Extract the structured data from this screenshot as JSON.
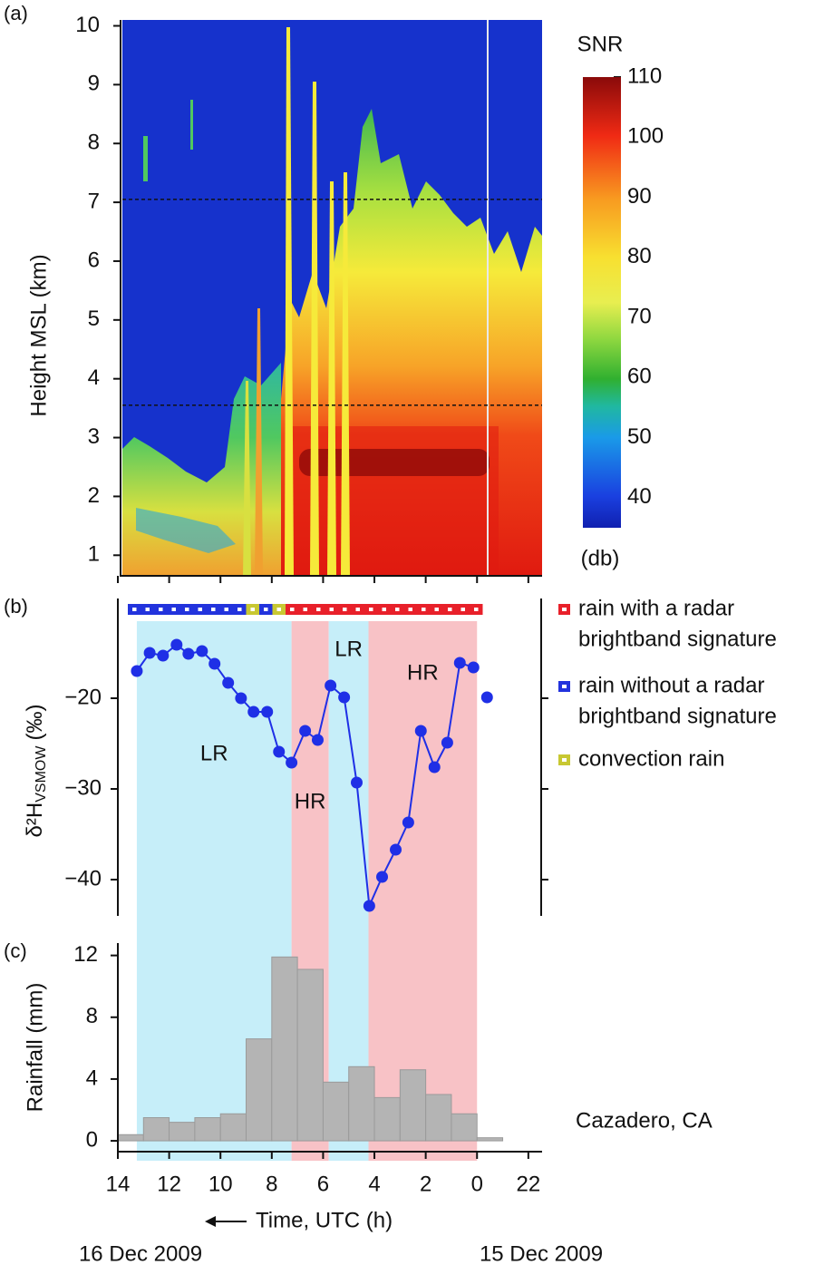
{
  "chart_data": [
    {
      "type": "heatmap",
      "label": "(a)",
      "ylabel": "Height MSL (km)",
      "ylim": [
        0.65,
        10.1
      ],
      "yticks": [
        1,
        2,
        3,
        4,
        5,
        6,
        7,
        8,
        9,
        10
      ],
      "hlines": [
        7.05,
        3.55
      ],
      "colorbar": {
        "title": "SNR",
        "unit": "(db)",
        "lim": [
          35,
          110
        ],
        "ticks": [
          40,
          50,
          60,
          70,
          80,
          90,
          100,
          110
        ]
      }
    },
    {
      "type": "line",
      "label": "(b)",
      "ylabel": "δ²H",
      "ylabel_sub": "VSMOW",
      "ylabel_unit": "(‰)",
      "xlim": [
        14,
        -2.5
      ],
      "ylim": [
        -44,
        -9
      ],
      "yticks": [
        {
          "value": -40,
          "label": "−40"
        },
        {
          "value": -30,
          "label": "−30"
        },
        {
          "value": -20,
          "label": "−20"
        }
      ],
      "series": [
        {
          "color": "#1f2fe6",
          "x": [
            13.26,
            12.76,
            12.24,
            11.71,
            11.25,
            10.72,
            10.23,
            9.7,
            9.2,
            8.71,
            8.18,
            7.72,
            7.23,
            6.7,
            6.21,
            5.71,
            5.18,
            4.69,
            4.2,
            3.7,
            3.17,
            2.68,
            2.19,
            1.66,
            1.16,
            0.67,
            0.14
          ],
          "values": [
            -17.0,
            -15.0,
            -15.3,
            -14.1,
            -15.1,
            -14.8,
            -16.2,
            -18.3,
            -20.0,
            -21.5,
            -21.5,
            -25.9,
            -27.1,
            -23.6,
            -24.6,
            -18.6,
            -19.9,
            -29.3,
            -42.9,
            -39.7,
            -36.7,
            -33.7,
            -23.6,
            -27.6,
            -24.9,
            -16.1,
            -16.6
          ]
        },
        {
          "color": "#1f2fe6",
          "x": [
            -0.39
          ],
          "values": [
            -19.9
          ]
        }
      ],
      "regions": [
        {
          "start": 13.26,
          "end": 7.23,
          "label": "LR",
          "color": "#c6eef9"
        },
        {
          "start": 7.23,
          "end": 5.78,
          "label": "HR",
          "color": "#f8c2c6"
        },
        {
          "start": 5.78,
          "end": 4.23,
          "label": "LR",
          "color": "#c6eef9"
        },
        {
          "start": 4.23,
          "end": 0,
          "label": "HR",
          "color": "#f8c2c6"
        }
      ],
      "rain_type_colors": [
        "#2233dd",
        "#2233dd",
        "#2233dd",
        "#2233dd",
        "#2233dd",
        "#2233dd",
        "#2233dd",
        "#2233dd",
        "#2233dd",
        "#c8c832",
        "#2233dd",
        "#c8c832",
        "#e8202a",
        "#e8202a",
        "#e8202a",
        "#e8202a",
        "#e8202a",
        "#e8202a",
        "#e8202a",
        "#e8202a",
        "#e8202a",
        "#e8202a",
        "#e8202a",
        "#e8202a",
        "#e8202a",
        "#e8202a",
        "#e8202a"
      ],
      "legend": [
        {
          "name": [
            "rain with a radar",
            "brightband signature"
          ],
          "color": "#e8202a"
        },
        {
          "name": [
            "rain without a radar",
            "brightband signature"
          ],
          "color": "#2233dd"
        },
        {
          "name": [
            "convection rain"
          ],
          "color": "#c8c832"
        }
      ]
    },
    {
      "type": "histogram",
      "label": "(c)",
      "ylabel": "Rainfall (mm)",
      "xlabel": "Time, UTC (h)",
      "bins": [
        14,
        13,
        12,
        11,
        10,
        9,
        8,
        7,
        6,
        5,
        4,
        3,
        2,
        1,
        0,
        -1
      ],
      "values": [
        0.4,
        1.5,
        1.2,
        1.5,
        1.75,
        6.6,
        11.9,
        11.1,
        3.8,
        4.8,
        2.8,
        4.6,
        3.0,
        1.75,
        0.2
      ],
      "color": "#b4b4b4",
      "xlim": [
        14,
        -2.5
      ],
      "xticks": [
        14,
        12,
        10,
        8,
        6,
        4,
        2,
        0,
        {
          "value": -2,
          "label": "22"
        }
      ],
      "ylim": [
        -0.7,
        12.8
      ],
      "yticks": [
        0,
        4,
        8,
        12
      ],
      "annotation": "Cazadero, CA",
      "date_labels": [
        "16 Dec 2009",
        "15 Dec 2009"
      ]
    }
  ]
}
